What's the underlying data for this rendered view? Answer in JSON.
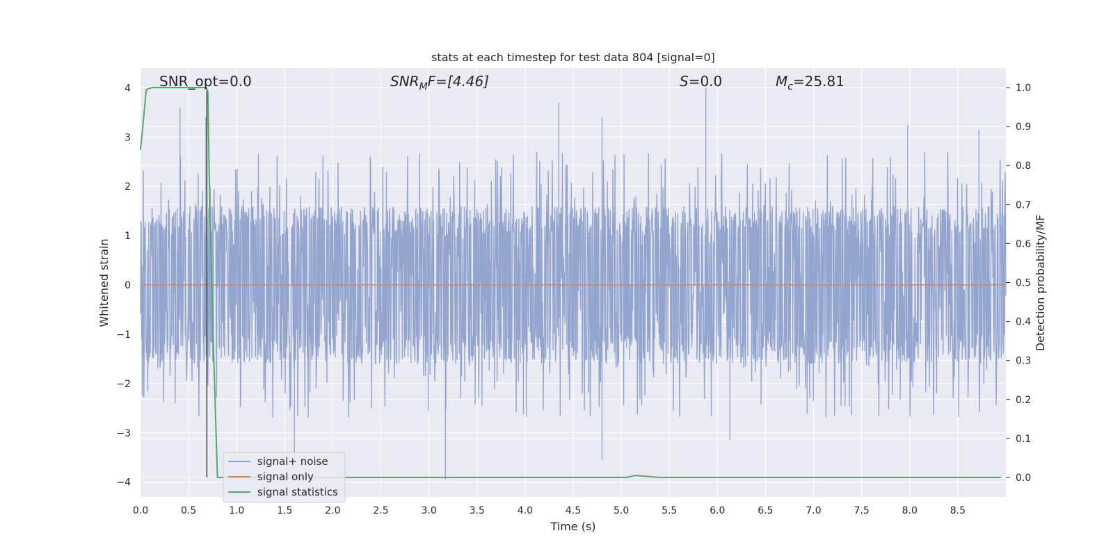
{
  "chart_data": {
    "type": "line",
    "title": "stats at each timestep for test data 804 [signal=0]",
    "xlabel": "Time (s)",
    "ylabel": "Whitened strain",
    "y2label": "Detection probability/MF",
    "xlim": [
      0,
      9.0
    ],
    "ylim": [
      -4.3,
      4.4
    ],
    "y2lim": [
      -0.05,
      1.05
    ],
    "x_ticks": [
      "0.0",
      "0.5",
      "1.0",
      "1.5",
      "2.0",
      "2.5",
      "3.0",
      "3.5",
      "4.0",
      "4.5",
      "5.0",
      "5.5",
      "6.0",
      "6.5",
      "7.0",
      "7.5",
      "8.0",
      "8.5"
    ],
    "y_ticks": [
      "4",
      "3",
      "2",
      "1",
      "0",
      "−1",
      "−2",
      "−3",
      "−4"
    ],
    "y2_ticks": [
      "1.0",
      "0.9",
      "0.8",
      "0.7",
      "0.6",
      "0.5",
      "0.4",
      "0.3",
      "0.2",
      "0.1",
      "0.0"
    ],
    "grid": true,
    "legend_position": "lower-left",
    "annotations": {
      "snr_opt": "SNR_opt=0.0",
      "snr_mf_base": "SNR",
      "snr_mf_sub": "M",
      "snr_mf_rest": "F=[4.46]",
      "s_var": "S",
      "s_rest": "=0.0",
      "mc_base": "M",
      "mc_sub": "c",
      "mc_rest": "=25.81"
    },
    "series": [
      {
        "name": "signal+ noise",
        "color": "#8ea1cc",
        "noise_envelope": [
          -1.5,
          1.5
        ],
        "notable_peaks": [
          [
            0.41,
            3.6
          ],
          [
            0.68,
            3.4
          ],
          [
            4.35,
            3.7
          ],
          [
            4.8,
            3.4
          ],
          [
            5.88,
            4.0
          ],
          [
            7.98,
            3.25
          ],
          [
            8.72,
            3.15
          ],
          [
            1.6,
            -3.55
          ],
          [
            3.17,
            -3.95
          ],
          [
            4.8,
            -3.55
          ],
          [
            6.13,
            -3.15
          ]
        ]
      },
      {
        "name": "signal only",
        "color": "#dd8452",
        "constant_value": 0.0
      },
      {
        "name": "signal statistics",
        "color": "#55a868",
        "axis": "right",
        "points": [
          [
            0.0,
            0.84
          ],
          [
            0.06,
            0.995
          ],
          [
            0.12,
            1.0
          ],
          [
            0.68,
            1.0
          ],
          [
            0.7,
            0.99
          ],
          [
            0.72,
            0.7
          ],
          [
            0.75,
            0.4
          ],
          [
            0.8,
            0.0
          ],
          [
            5.05,
            0.0
          ],
          [
            5.15,
            0.005
          ],
          [
            5.2,
            0.004
          ],
          [
            5.4,
            0.0
          ],
          [
            8.95,
            0.0
          ]
        ]
      }
    ],
    "vertical_marker": {
      "x": 0.69,
      "color": "#404040"
    }
  }
}
